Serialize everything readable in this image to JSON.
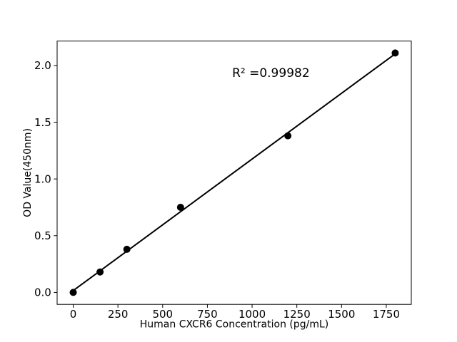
{
  "figure": {
    "background_color": "#ffffff",
    "foreground_color": "#000000"
  },
  "chart_data": {
    "type": "scatter",
    "title": "",
    "xlabel": "Human CXCR6 Concentration (pg/mL)",
    "ylabel": "OD Value(450nm)",
    "x": [
      0,
      150,
      300,
      600,
      1200,
      1800
    ],
    "y": [
      0.0,
      0.18,
      0.38,
      0.75,
      1.38,
      2.11
    ],
    "fit_line": {
      "x0": 0,
      "y0": 0.016,
      "x1": 1800,
      "y1": 2.103
    },
    "annotation": {
      "text": "R² =0.99982",
      "x": 1105,
      "y": 1.9
    },
    "xlim": [
      -90,
      1890
    ],
    "ylim": [
      -0.1055,
      2.2155
    ],
    "xtick_values": [
      0,
      250,
      500,
      750,
      1000,
      1250,
      1500,
      1750
    ],
    "xtick_labels": [
      "0",
      "250",
      "500",
      "750",
      "1000",
      "1250",
      "1500",
      "1750"
    ],
    "ytick_values": [
      0.0,
      0.5,
      1.0,
      1.5,
      2.0
    ],
    "ytick_labels": [
      "0.0",
      "0.5",
      "1.0",
      "1.5",
      "2.0"
    ],
    "marker_color": "#000000",
    "line_color": "#000000",
    "grid": false,
    "legend": null
  }
}
